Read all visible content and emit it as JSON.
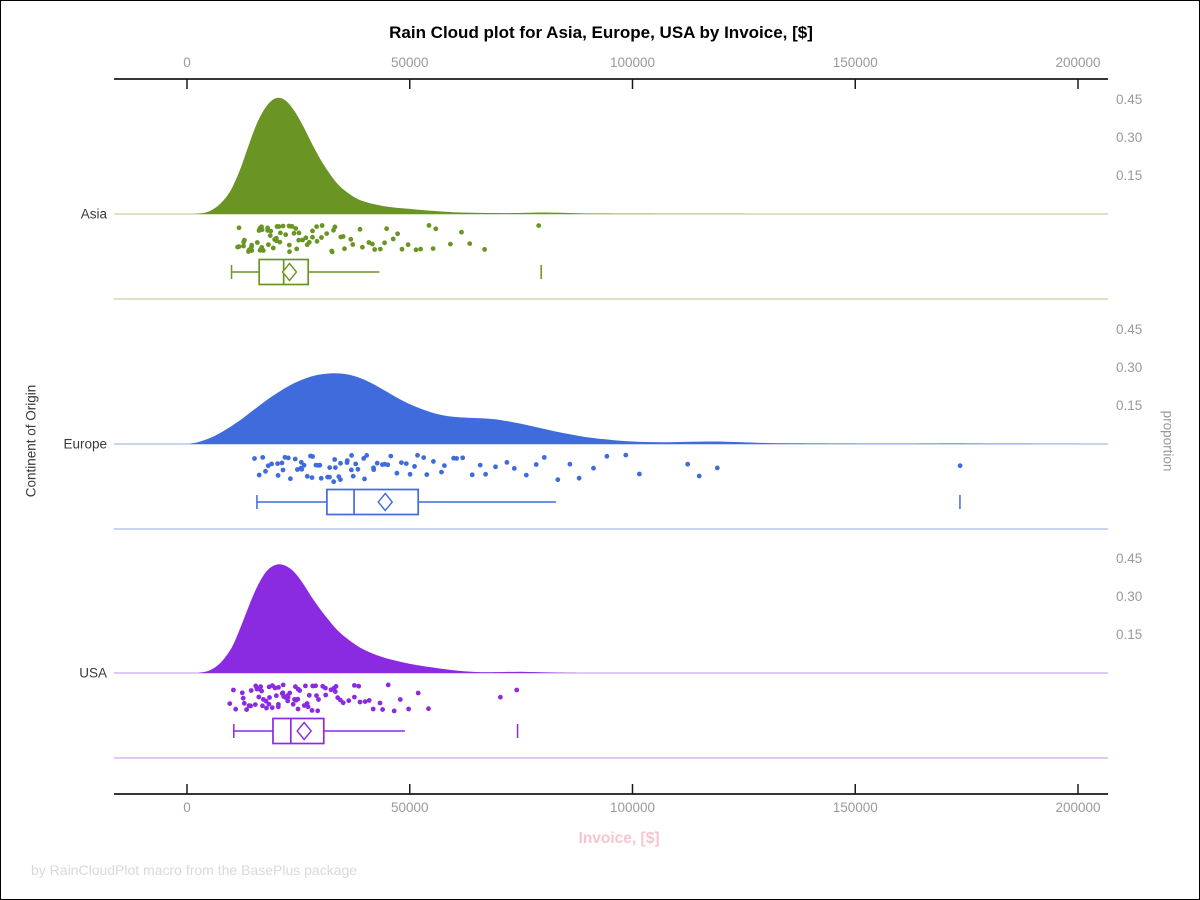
{
  "title": "Rain Cloud plot for Asia, Europe, USA by Invoice, [$]",
  "footer": "by RainCloudPlot macro from the BasePlus package",
  "chart_data": {
    "type": "raincloud",
    "title": "Rain Cloud plot for Asia, Europe, USA by Invoice, [$]",
    "xlabel": "Invoice, [$]",
    "ylabel_left": "Continent of Origin",
    "ylabel_right": "proportion",
    "xlim": [
      -16000,
      206000
    ],
    "x_ticks": [
      {
        "value": 0,
        "label": "0"
      },
      {
        "value": 50000,
        "label": "50000"
      },
      {
        "value": 100000,
        "label": "100000"
      },
      {
        "value": 150000,
        "label": "150000"
      },
      {
        "value": 200000,
        "label": "200000"
      }
    ],
    "proportion_ticks": [
      {
        "value": 0.15,
        "label": "0.15"
      },
      {
        "value": 0.3,
        "label": "0.30"
      },
      {
        "value": 0.45,
        "label": "0.45"
      }
    ],
    "grid": false,
    "legend": "none",
    "categories": [
      "Asia",
      "Europe",
      "USA"
    ],
    "series": [
      {
        "name": "Asia",
        "color": "#6A9423",
        "light_color": "#D9E4C2",
        "density": [
          [
            1500,
            0
          ],
          [
            4000,
            0.005
          ],
          [
            6000,
            0.02
          ],
          [
            8000,
            0.05
          ],
          [
            10000,
            0.1
          ],
          [
            12000,
            0.18
          ],
          [
            14000,
            0.28
          ],
          [
            16000,
            0.37
          ],
          [
            18000,
            0.43
          ],
          [
            20000,
            0.458
          ],
          [
            22000,
            0.45
          ],
          [
            24000,
            0.41
          ],
          [
            26000,
            0.35
          ],
          [
            28000,
            0.28
          ],
          [
            30000,
            0.215
          ],
          [
            32000,
            0.16
          ],
          [
            34000,
            0.115
          ],
          [
            36000,
            0.085
          ],
          [
            38000,
            0.062
          ],
          [
            40000,
            0.048
          ],
          [
            43000,
            0.035
          ],
          [
            46000,
            0.027
          ],
          [
            50000,
            0.02
          ],
          [
            54000,
            0.014
          ],
          [
            58000,
            0.009
          ],
          [
            62000,
            0.006
          ],
          [
            68000,
            0.004
          ],
          [
            74000,
            0.004
          ],
          [
            79000,
            0.006
          ],
          [
            84000,
            0.005
          ],
          [
            90000,
            0.002
          ],
          [
            100000,
            0.001
          ],
          [
            115000,
            0.0005
          ],
          [
            130000,
            0
          ]
        ],
        "box": {
          "whisker_low": 10000,
          "q1": 16200,
          "median": 21700,
          "q3": 27200,
          "whisker_high": 43200,
          "mean": 23000,
          "outliers": [
            79500
          ]
        },
        "points": [
          11000,
          11800,
          12200,
          12600,
          13000,
          13300,
          13700,
          14000,
          14300,
          14700,
          15000,
          15300,
          15600,
          15900,
          16200,
          16500,
          16800,
          17100,
          17400,
          17700,
          18000,
          18300,
          18600,
          18900,
          19200,
          19500,
          19800,
          20100,
          20400,
          20700,
          21000,
          21300,
          21700,
          22000,
          22400,
          22800,
          23200,
          23600,
          24000,
          24400,
          24800,
          25200,
          25600,
          26000,
          26500,
          27000,
          27500,
          28000,
          28500,
          29000,
          29600,
          30200,
          30800,
          31400,
          32000,
          32700,
          33400,
          34100,
          34900,
          35700,
          36500,
          37400,
          38300,
          39300,
          40300,
          41400,
          42600,
          43900,
          45300,
          46800,
          48400,
          50100,
          52000,
          54000,
          56200,
          58600,
          61200,
          64000,
          67000,
          55000,
          47500,
          51000,
          43000,
          33000,
          79500
        ]
      },
      {
        "name": "Europe",
        "color": "#3F6BDC",
        "light_color": "#C9D6F0",
        "density": [
          [
            500,
            0
          ],
          [
            3000,
            0.01
          ],
          [
            6000,
            0.03
          ],
          [
            9000,
            0.06
          ],
          [
            12000,
            0.095
          ],
          [
            15000,
            0.135
          ],
          [
            18000,
            0.175
          ],
          [
            21000,
            0.21
          ],
          [
            24000,
            0.24
          ],
          [
            27000,
            0.262
          ],
          [
            30000,
            0.275
          ],
          [
            33000,
            0.28
          ],
          [
            36000,
            0.275
          ],
          [
            39000,
            0.26
          ],
          [
            42000,
            0.235
          ],
          [
            45000,
            0.205
          ],
          [
            48000,
            0.175
          ],
          [
            51000,
            0.15
          ],
          [
            54000,
            0.13
          ],
          [
            57000,
            0.115
          ],
          [
            60000,
            0.107
          ],
          [
            63000,
            0.104
          ],
          [
            66000,
            0.102
          ],
          [
            69000,
            0.098
          ],
          [
            72000,
            0.09
          ],
          [
            75000,
            0.08
          ],
          [
            78000,
            0.068
          ],
          [
            81000,
            0.056
          ],
          [
            84000,
            0.045
          ],
          [
            87000,
            0.035
          ],
          [
            90000,
            0.026
          ],
          [
            94000,
            0.018
          ],
          [
            98000,
            0.012
          ],
          [
            103000,
            0.008
          ],
          [
            108000,
            0.007
          ],
          [
            113000,
            0.009
          ],
          [
            118000,
            0.01
          ],
          [
            123000,
            0.008
          ],
          [
            128000,
            0.005
          ],
          [
            134000,
            0.003
          ],
          [
            142000,
            0.002
          ],
          [
            152000,
            0.001
          ],
          [
            162000,
            0.001
          ],
          [
            172000,
            0.002
          ],
          [
            180000,
            0.001
          ],
          [
            192000,
            0.0005
          ],
          [
            205000,
            0
          ]
        ],
        "box": {
          "whisker_low": 15700,
          "q1": 31400,
          "median": 37500,
          "q3": 51900,
          "whisker_high": 82800,
          "mean": 44500,
          "outliers": [
            173500
          ]
        },
        "points": [
          15000,
          16000,
          17000,
          17800,
          18500,
          19200,
          19900,
          20500,
          21100,
          21700,
          22300,
          22900,
          23400,
          24000,
          24500,
          25000,
          25500,
          26000,
          26500,
          27000,
          27500,
          28000,
          28500,
          29000,
          29500,
          30000,
          30500,
          31000,
          31500,
          32000,
          32500,
          33000,
          33500,
          34000,
          34500,
          35000,
          35500,
          36000,
          36500,
          37000,
          37600,
          38200,
          38800,
          39400,
          40000,
          40700,
          41400,
          42100,
          42800,
          43600,
          44400,
          45200,
          46000,
          46900,
          47800,
          48800,
          49800,
          50800,
          51900,
          53000,
          54200,
          55400,
          56700,
          58000,
          59400,
          60900,
          62400,
          64000,
          65700,
          67500,
          69400,
          71400,
          73500,
          75700,
          78000,
          80400,
          83000,
          85700,
          88500,
          91500,
          94700,
          98000,
          101500,
          112500,
          115500,
          118500,
          173500
        ]
      },
      {
        "name": "USA",
        "color": "#8A2BE2",
        "light_color": "#E0C9F2",
        "density": [
          [
            2500,
            0
          ],
          [
            5000,
            0.01
          ],
          [
            7500,
            0.04
          ],
          [
            10000,
            0.1
          ],
          [
            12000,
            0.18
          ],
          [
            14000,
            0.27
          ],
          [
            16000,
            0.35
          ],
          [
            18000,
            0.405
          ],
          [
            20000,
            0.428
          ],
          [
            22000,
            0.425
          ],
          [
            24000,
            0.4
          ],
          [
            26000,
            0.355
          ],
          [
            28000,
            0.3
          ],
          [
            30000,
            0.25
          ],
          [
            32000,
            0.205
          ],
          [
            34000,
            0.165
          ],
          [
            36000,
            0.135
          ],
          [
            38000,
            0.11
          ],
          [
            40000,
            0.09
          ],
          [
            43000,
            0.068
          ],
          [
            46000,
            0.052
          ],
          [
            49000,
            0.04
          ],
          [
            52000,
            0.03
          ],
          [
            55000,
            0.022
          ],
          [
            58000,
            0.015
          ],
          [
            61000,
            0.009
          ],
          [
            64000,
            0.005
          ],
          [
            67000,
            0.003
          ],
          [
            71000,
            0.004
          ],
          [
            75000,
            0.005
          ],
          [
            79000,
            0.003
          ],
          [
            84000,
            0.001
          ],
          [
            92000,
            0
          ]
        ],
        "box": {
          "whisker_low": 10500,
          "q1": 19300,
          "median": 23300,
          "q3": 30700,
          "whisker_high": 48900,
          "mean": 26300,
          "outliers": [
            74200
          ]
        },
        "points": [
          10000,
          10800,
          11400,
          12000,
          12500,
          13000,
          13400,
          13800,
          14200,
          14600,
          15000,
          15400,
          15700,
          16000,
          16300,
          16600,
          16900,
          17200,
          17500,
          17800,
          18100,
          18400,
          18700,
          19000,
          19300,
          19600,
          19900,
          20200,
          20500,
          20800,
          21100,
          21400,
          21700,
          22000,
          22300,
          22600,
          22900,
          23200,
          23500,
          23800,
          24100,
          24400,
          24800,
          25200,
          25600,
          26000,
          26400,
          26800,
          27200,
          27600,
          28000,
          28500,
          29000,
          29500,
          30000,
          30500,
          31000,
          31600,
          32200,
          32800,
          33400,
          34100,
          34800,
          35500,
          36300,
          37100,
          38000,
          39000,
          40000,
          41100,
          42300,
          43600,
          45000,
          46500,
          48100,
          49800,
          51700,
          53700,
          43000,
          38500,
          33800,
          29200,
          24500,
          21000,
          18800,
          70500,
          74500
        ]
      }
    ]
  },
  "style_colors": {
    "axis_line": "#1a1a1a",
    "tick_text": "#9a9a9a",
    "category_text": "#3a3a3a",
    "title_text": "#000000",
    "xlabel_pink": "#f9c3cf",
    "footer_gray": "#d9d9d9"
  }
}
